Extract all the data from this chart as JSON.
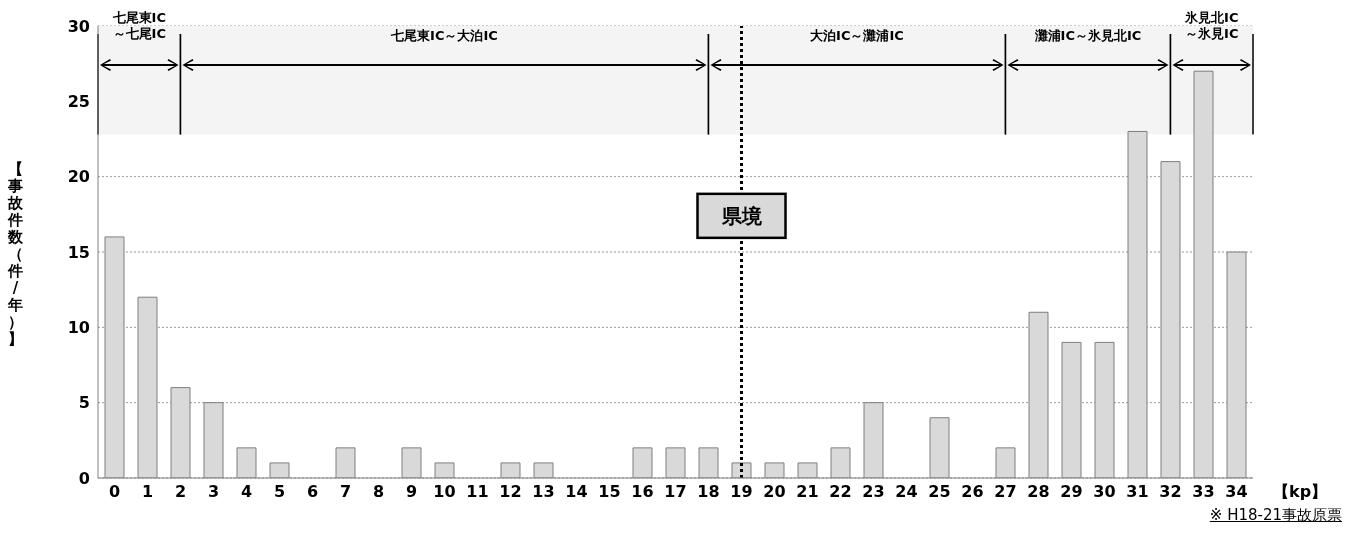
{
  "chart_data": {
    "type": "bar",
    "x": [
      0,
      1,
      2,
      3,
      4,
      5,
      6,
      7,
      8,
      9,
      10,
      11,
      12,
      13,
      14,
      15,
      16,
      17,
      18,
      19,
      20,
      21,
      22,
      23,
      24,
      25,
      26,
      27,
      28,
      29,
      30,
      31,
      32,
      33,
      34
    ],
    "values": [
      16,
      12,
      6,
      5,
      2,
      1,
      0,
      2,
      0,
      2,
      1,
      0,
      1,
      1,
      0,
      0,
      2,
      2,
      2,
      1,
      1,
      1,
      2,
      5,
      0,
      4,
      0,
      2,
      11,
      9,
      9,
      23,
      21,
      27,
      15
    ],
    "color": "#d9d9d9",
    "xlim": [
      -0.5,
      34.5
    ],
    "xticks": [
      0,
      1,
      2,
      3,
      4,
      5,
      6,
      7,
      8,
      9,
      10,
      11,
      12,
      13,
      14,
      15,
      16,
      17,
      18,
      19,
      20,
      21,
      22,
      23,
      24,
      25,
      26,
      27,
      28,
      29,
      30,
      31,
      32,
      33,
      34
    ],
    "ylim": [
      0,
      30
    ],
    "yticks": [
      0,
      5,
      10,
      15,
      20,
      25,
      30
    ],
    "xlabel": "【kp】",
    "ylabel": "【事故件数（件/年）】",
    "grid": "y",
    "ref_lines": [
      {
        "axis": "x",
        "value": 19,
        "label": "県境",
        "line_style": "dotted",
        "color": "#000000"
      }
    ],
    "bands": [
      {
        "axis": "x",
        "from": -0.5,
        "to": 2,
        "label": "七尾東IC\n～七尾IC",
        "color": "#f4f4f4"
      },
      {
        "axis": "x",
        "from": 2,
        "to": 18,
        "label": "七尾東IC～大泊IC",
        "color": "#f4f4f4"
      },
      {
        "axis": "x",
        "from": 18,
        "to": 27,
        "label": "大泊IC～灘浦IC",
        "color": "#f4f4f4"
      },
      {
        "axis": "x",
        "from": 27,
        "to": 32,
        "label": "灘浦IC～氷見北IC",
        "color": "#f4f4f4"
      },
      {
        "axis": "x",
        "from": 32,
        "to": 34.5,
        "label": "氷見北IC\n～氷見IC",
        "color": "#f4f4f4"
      }
    ],
    "annotations": [
      "※ H18-21事故原票"
    ]
  }
}
